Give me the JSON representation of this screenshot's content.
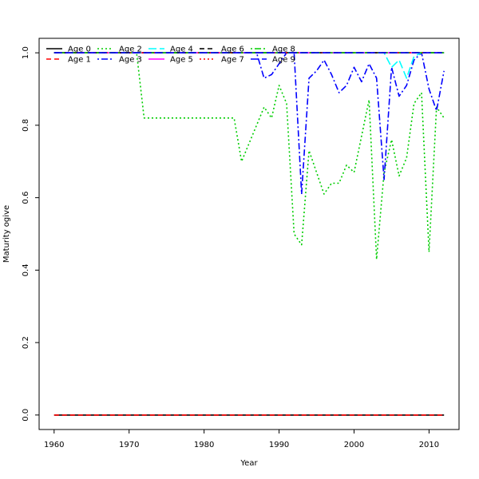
{
  "chart_data": {
    "type": "line",
    "title": "",
    "xlabel": "Year",
    "ylabel": "Maturity ogive",
    "xlim": [
      1958,
      2014
    ],
    "ylim": [
      -0.04,
      1.04
    ],
    "xticks": [
      1960,
      1970,
      1980,
      1990,
      2000,
      2010
    ],
    "yticks": [
      0.0,
      0.2,
      0.4,
      0.6,
      0.8,
      1.0
    ],
    "xtick_labels": [
      "1960",
      "1970",
      "1980",
      "1990",
      "2000",
      "2010"
    ],
    "ytick_labels": [
      "0.0",
      "0.2",
      "0.4",
      "0.6",
      "0.8",
      "1.0"
    ],
    "grid": false,
    "legend_position": "top-left",
    "series": [
      {
        "name": "Age 0",
        "color": "#000000",
        "dash": "solid",
        "x": [
          1960,
          2012
        ],
        "y": [
          0.0,
          0.0
        ]
      },
      {
        "name": "Age 1",
        "color": "#ff0000",
        "dash": "dashed",
        "x": [
          1960,
          2012
        ],
        "y": [
          0.0,
          0.0
        ]
      },
      {
        "name": "Age 2",
        "color": "#00cd00",
        "dash": "dotted",
        "x": [
          1960,
          1970,
          1971,
          1972,
          1984,
          1985,
          1988,
          1989,
          1990,
          1991,
          1992,
          1993,
          1994,
          1996,
          1997,
          1998,
          1999,
          2000,
          2001,
          2002,
          2003,
          2004,
          2005,
          2006,
          2007,
          2008,
          2009,
          2010,
          2011,
          2012
        ],
        "y": [
          1.0,
          1.0,
          1.0,
          0.82,
          0.82,
          0.7,
          0.85,
          0.82,
          0.91,
          0.86,
          0.5,
          0.47,
          0.73,
          0.61,
          0.64,
          0.64,
          0.69,
          0.67,
          0.77,
          0.87,
          0.43,
          0.67,
          0.76,
          0.66,
          0.71,
          0.86,
          0.89,
          0.45,
          0.85,
          0.82
        ]
      },
      {
        "name": "Age 3",
        "color": "#0000ff",
        "dash": "dotdash",
        "x": [
          1960,
          1987,
          1988,
          1989,
          1990,
          1991,
          1992,
          1993,
          1994,
          1995,
          1996,
          1997,
          1998,
          1999,
          2000,
          2001,
          2002,
          2003,
          2004,
          2005,
          2006,
          2007,
          2008,
          2009,
          2010,
          2011,
          2012
        ],
        "y": [
          1.0,
          1.0,
          0.93,
          0.94,
          0.97,
          1.0,
          1.0,
          0.61,
          0.93,
          0.95,
          0.98,
          0.94,
          0.89,
          0.91,
          0.96,
          0.92,
          0.97,
          0.93,
          0.65,
          0.96,
          0.88,
          0.91,
          0.98,
          1.0,
          0.9,
          0.84,
          0.95
        ]
      },
      {
        "name": "Age 4",
        "color": "#00ffff",
        "dash": "longdash",
        "x": [
          1960,
          2004,
          2005,
          2006,
          2007,
          2008,
          2009,
          2012
        ],
        "y": [
          1.0,
          1.0,
          0.96,
          0.98,
          0.93,
          0.99,
          1.0,
          1.0
        ]
      },
      {
        "name": "Age 5",
        "color": "#ff00ff",
        "dash": "solid",
        "x": [
          1960,
          2012
        ],
        "y": [
          1.0,
          1.0
        ]
      },
      {
        "name": "Age 6",
        "color": "#000000",
        "dash": "dashed",
        "x": [
          1960,
          2012
        ],
        "y": [
          1.0,
          1.0
        ]
      },
      {
        "name": "Age 7",
        "color": "#ff0000",
        "dash": "dotted",
        "x": [
          1960,
          2012
        ],
        "y": [
          1.0,
          1.0
        ]
      },
      {
        "name": "Age 8",
        "color": "#00cd00",
        "dash": "dotdash",
        "x": [
          1960,
          2012
        ],
        "y": [
          1.0,
          1.0
        ]
      },
      {
        "name": "Age 9",
        "color": "#0000ff",
        "dash": "longdash",
        "x": [
          1960,
          2012
        ],
        "y": [
          1.0,
          1.0
        ]
      }
    ]
  }
}
